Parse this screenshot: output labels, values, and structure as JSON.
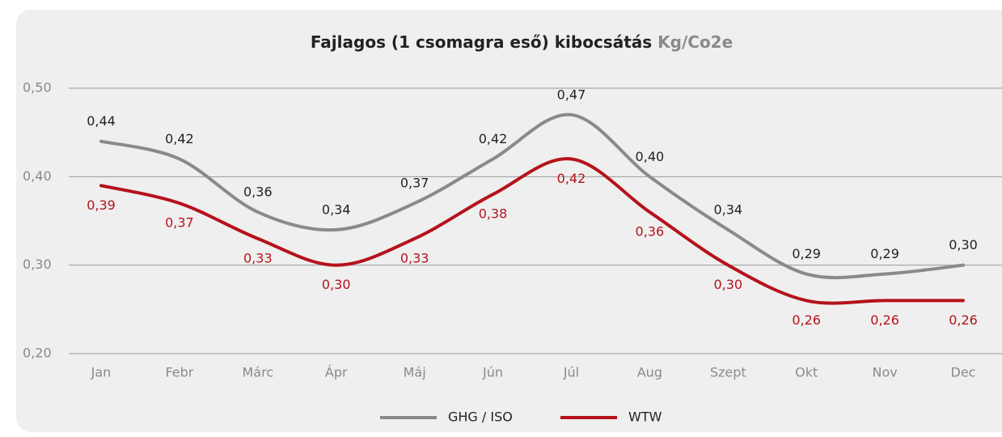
{
  "chart_data": {
    "type": "line",
    "title": "Fajlagos (1 csomagra eső) kibocsátás",
    "title_unit": "Kg/Co2e",
    "categories": [
      "Jan",
      "Febr",
      "Márc",
      "Ápr",
      "Máj",
      "Jún",
      "Júl",
      "Aug",
      "Szept",
      "Okt",
      "Nov",
      "Dec"
    ],
    "series": [
      {
        "name": "GHG / ISO",
        "color": "#8a8a8a",
        "values": [
          0.44,
          0.42,
          0.36,
          0.34,
          0.37,
          0.42,
          0.47,
          0.4,
          0.34,
          0.29,
          0.29,
          0.3
        ],
        "value_labels": [
          "0,44",
          "0,42",
          "0,36",
          "0,34",
          "0,37",
          "0,42",
          "0,47",
          "0,40",
          "0,34",
          "0,29",
          "0,29",
          "0,30"
        ]
      },
      {
        "name": "WTW",
        "color": "#b5121b",
        "values": [
          0.39,
          0.37,
          0.33,
          0.3,
          0.33,
          0.38,
          0.42,
          0.36,
          0.3,
          0.26,
          0.26,
          0.26
        ],
        "value_labels": [
          "0,39",
          "0,37",
          "0,33",
          "0,30",
          "0,33",
          "0,38",
          "0,42",
          "0,36",
          "0,30",
          "0,26",
          "0,26",
          "0,26"
        ]
      }
    ],
    "ylim": [
      0.2,
      0.5
    ],
    "yticks": [
      {
        "value": 0.2,
        "label": "0,20"
      },
      {
        "value": 0.3,
        "label": "0,30"
      },
      {
        "value": 0.4,
        "label": "0,40"
      },
      {
        "value": 0.5,
        "label": "0,50"
      }
    ],
    "grid": true
  }
}
